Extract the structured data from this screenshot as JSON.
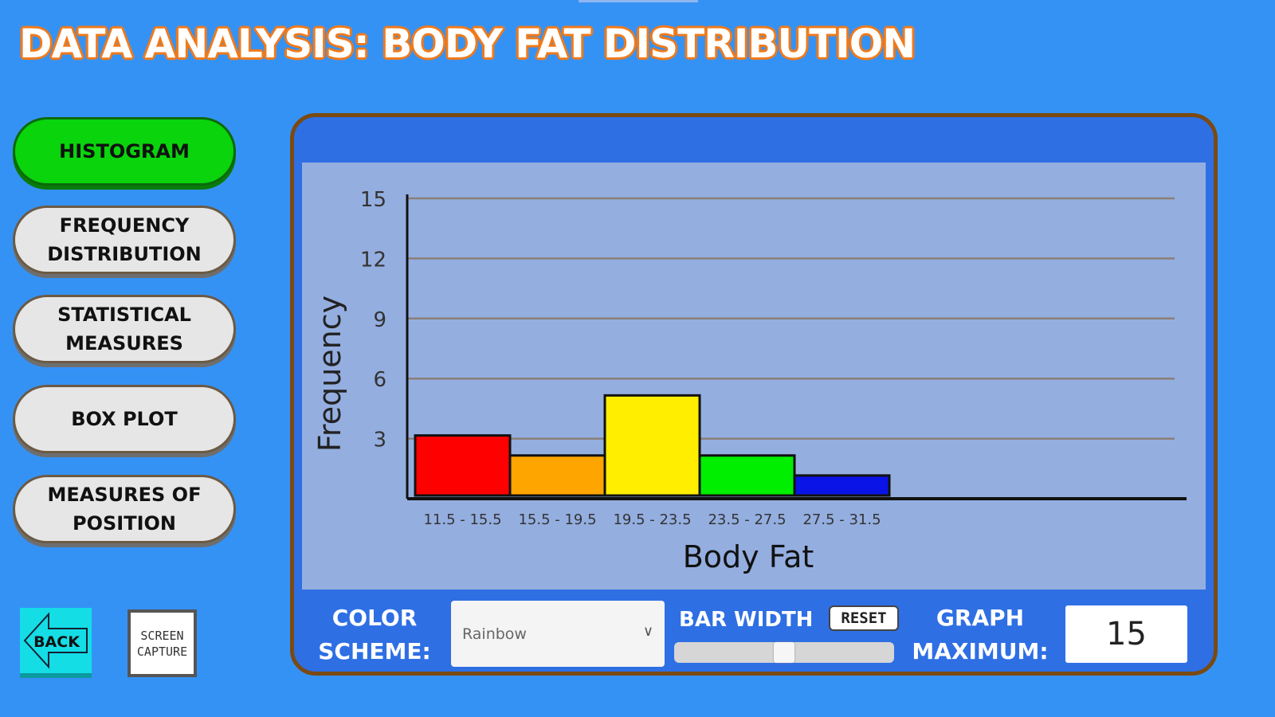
{
  "title": "DATA ANALYSIS: BODY FAT DISTRIBUTION",
  "nav": [
    {
      "label": "HISTOGRAM",
      "active": true
    },
    {
      "label": "FREQUENCY DISTRIBUTION",
      "active": false
    },
    {
      "label": "STATISTICAL MEASURES",
      "active": false
    },
    {
      "label": "BOX PLOT",
      "active": false
    },
    {
      "label": "MEASURES OF POSITION",
      "active": false
    }
  ],
  "back_label": "BACK",
  "screen_capture_label": "SCREEN CAPTURE",
  "controls": {
    "color_scheme_label": "COLOR SCHEME:",
    "color_scheme_value": "Rainbow",
    "bar_width_label": "BAR WIDTH",
    "reset_label": "RESET",
    "bar_width_level": 0.5,
    "graph_max_label": "GRAPH MAXIMUM:",
    "graph_max_value": "15"
  },
  "chart_data": {
    "type": "bar",
    "title": "",
    "xlabel": "Body Fat",
    "ylabel": "Frequency",
    "categories": [
      "11.5 - 15.5",
      "15.5 - 19.5",
      "19.5 - 23.5",
      "23.5 - 27.5",
      "27.5 - 31.5"
    ],
    "values": [
      3,
      2,
      5,
      2,
      1
    ],
    "colors": [
      "#ff0000",
      "#ffa500",
      "#ffee00",
      "#00ee00",
      "#0a14e6"
    ],
    "ylim": [
      0,
      15
    ],
    "yticks": [
      3,
      6,
      9,
      12,
      15
    ],
    "grid": true
  }
}
